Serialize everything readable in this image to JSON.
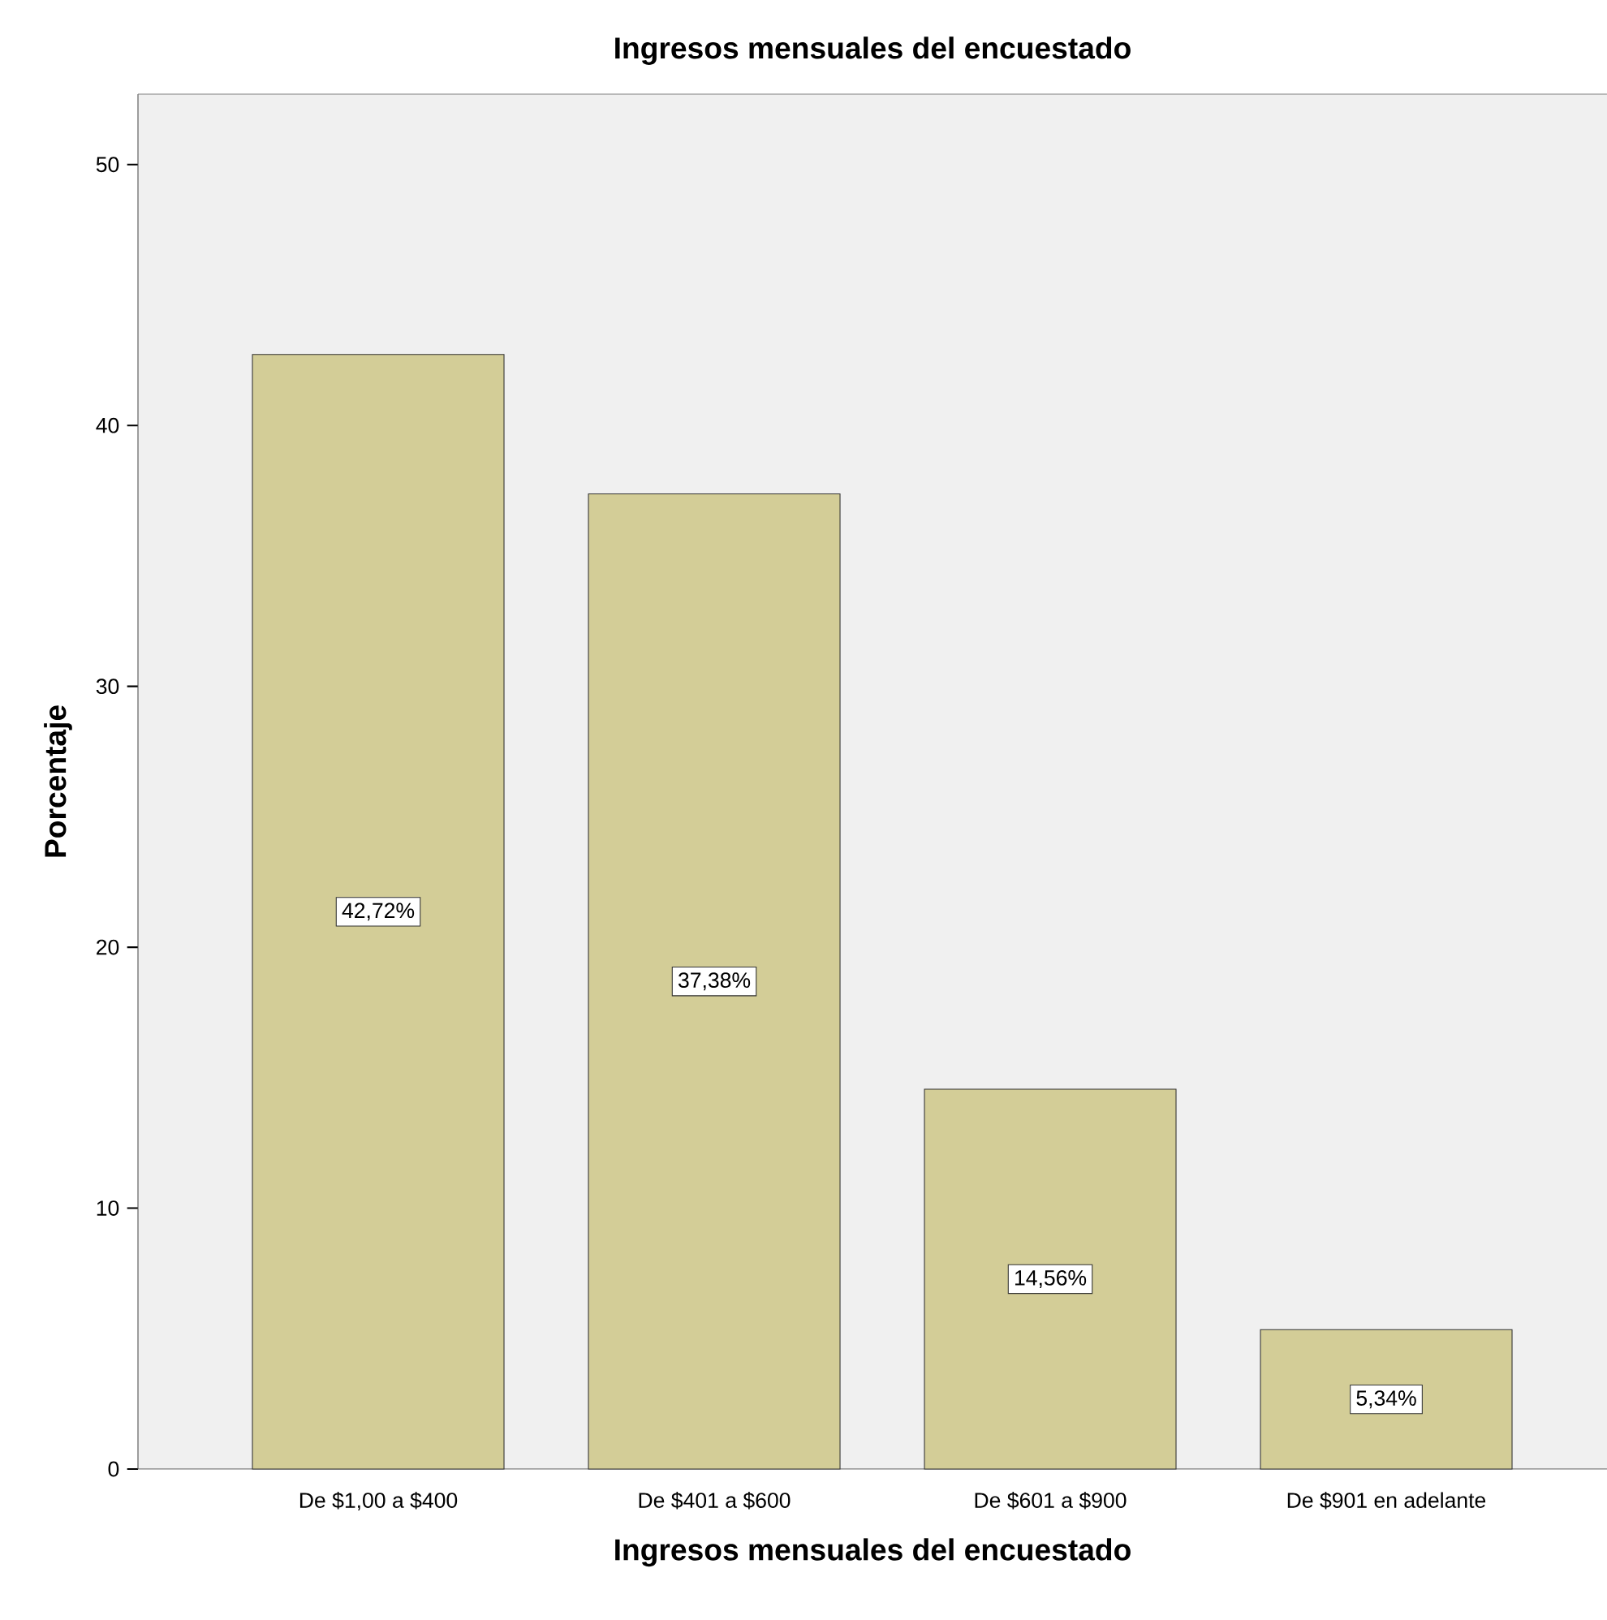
{
  "chart_data": {
    "type": "bar",
    "title": "Ingresos mensuales del encuestado",
    "xlabel": "Ingresos mensuales del encuestado",
    "ylabel": "Porcentaje",
    "categories": [
      "De $1,00 a $400",
      "De $401 a $600",
      "De $601 a $900",
      "De $901 en adelante"
    ],
    "values": [
      42.72,
      37.38,
      14.56,
      5.34
    ],
    "value_labels": [
      "42,72%",
      "37,38%",
      "14,56%",
      "5,34%"
    ],
    "color": "#d3cd97",
    "ylim": [
      0,
      52.7
    ],
    "yticks": [
      0,
      10,
      20,
      30,
      40,
      50
    ]
  }
}
